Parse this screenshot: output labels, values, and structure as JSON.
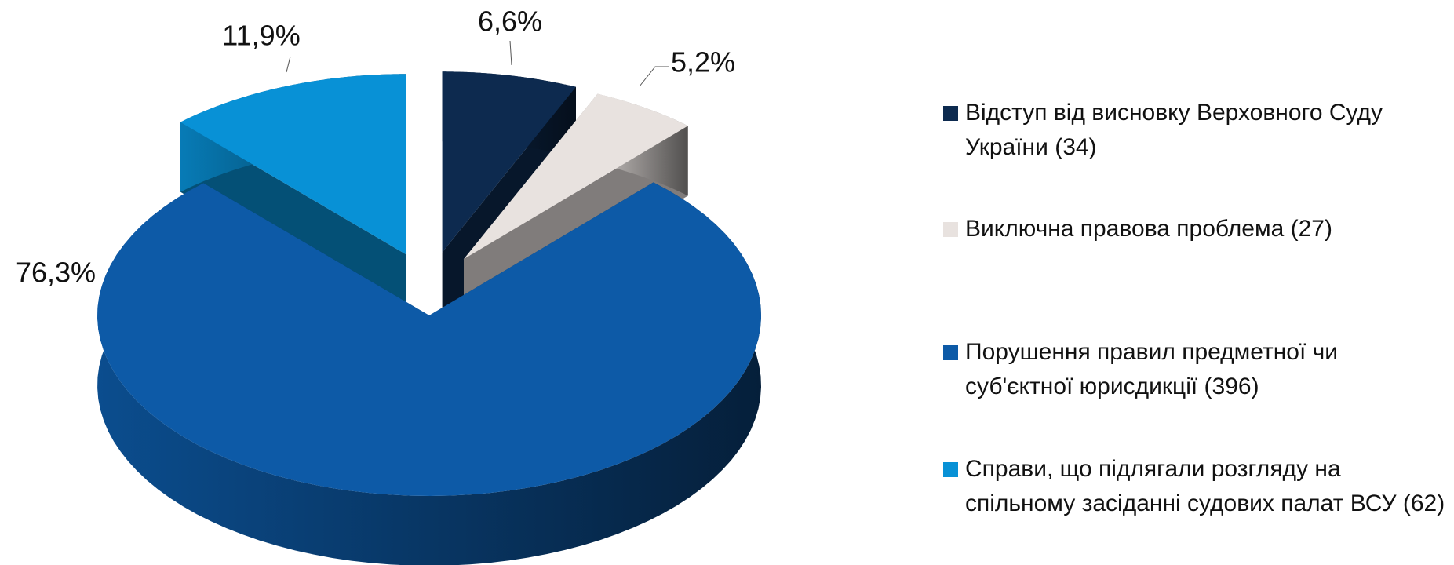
{
  "chart_data": {
    "type": "pie",
    "categories": [
      "Відступ від висновку Верховного Суду України (34)",
      "Виключна правова проблема (27)",
      "Порушення правил предметної чи суб'єктної юрисдикції (396)",
      "Справи, що підлягали розгляду на спільному засіданні судових палат ВСУ (62)"
    ],
    "values": [
      6.6,
      5.2,
      76.3,
      11.9
    ],
    "value_labels": [
      "6,6%",
      "5,2%",
      "76,3%",
      "11,9%"
    ],
    "colors": [
      "#0d2a4f",
      "#e8e2df",
      "#0d5aa7",
      "#0891d6"
    ],
    "legend": "right"
  }
}
